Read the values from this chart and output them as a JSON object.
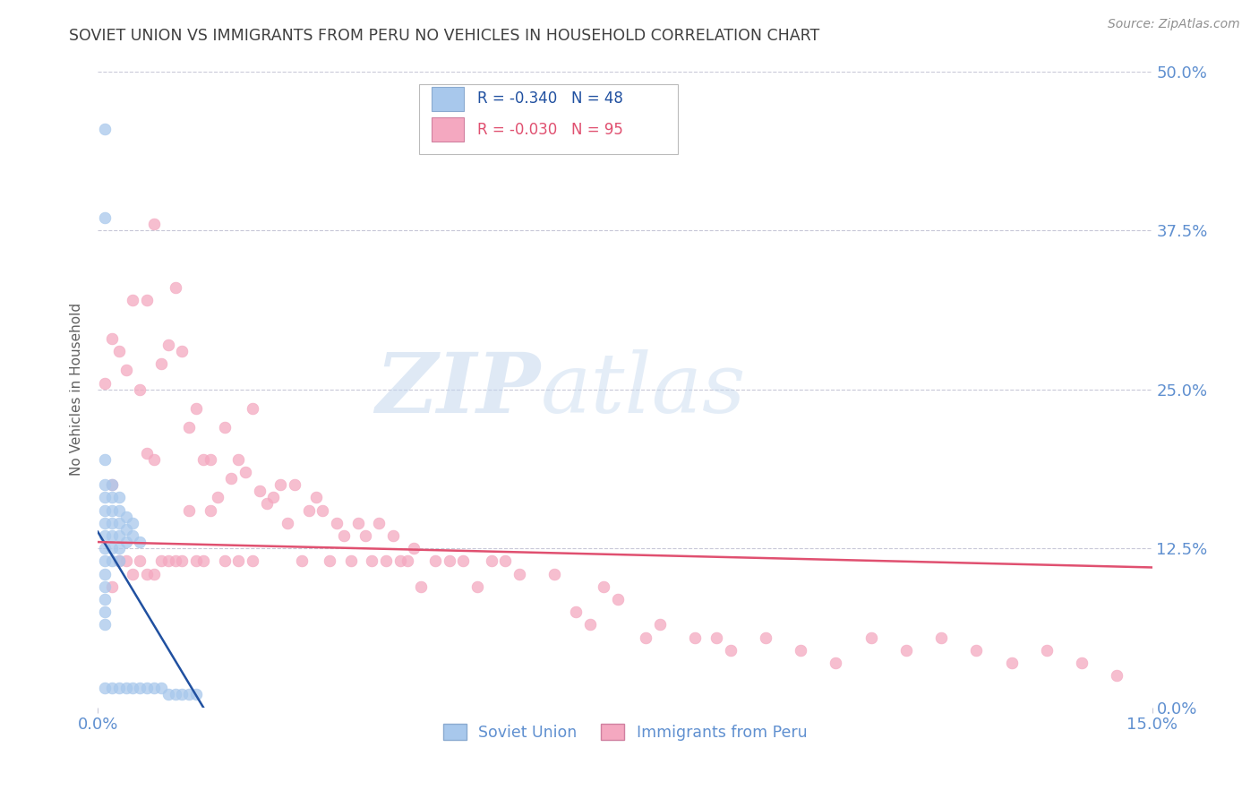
{
  "title": "SOVIET UNION VS IMMIGRANTS FROM PERU NO VEHICLES IN HOUSEHOLD CORRELATION CHART",
  "source": "Source: ZipAtlas.com",
  "ylabel": "No Vehicles in Household",
  "xlim": [
    0.0,
    0.15
  ],
  "ylim": [
    0.0,
    0.5
  ],
  "yticks": [
    0.0,
    0.125,
    0.25,
    0.375,
    0.5
  ],
  "ytick_labels_right": [
    "0.0%",
    "12.5%",
    "25.0%",
    "37.5%",
    "50.0%"
  ],
  "xtick_vals": [
    0.0,
    0.15
  ],
  "xtick_labels": [
    "0.0%",
    "15.0%"
  ],
  "r1": "-0.340",
  "n1": "48",
  "r2": "-0.030",
  "n2": "95",
  "legend1_label": "Soviet Union",
  "legend2_label": "Immigrants from Peru",
  "color_blue": "#A8C8EC",
  "color_pink": "#F4A8C0",
  "color_blue_line": "#2050A0",
  "color_pink_line": "#E05070",
  "color_axis": "#6090D0",
  "color_title": "#404040",
  "color_source": "#909090",
  "background": "#FFFFFF",
  "grid_color": "#C8C8D8",
  "watermark_color": "#D8E8F5",
  "soviet_x": [
    0.001,
    0.001,
    0.001,
    0.001,
    0.001,
    0.001,
    0.001,
    0.001,
    0.001,
    0.001,
    0.001,
    0.001,
    0.001,
    0.001,
    0.001,
    0.001,
    0.002,
    0.002,
    0.002,
    0.002,
    0.002,
    0.002,
    0.002,
    0.002,
    0.003,
    0.003,
    0.003,
    0.003,
    0.003,
    0.003,
    0.003,
    0.004,
    0.004,
    0.004,
    0.004,
    0.005,
    0.005,
    0.005,
    0.006,
    0.006,
    0.007,
    0.008,
    0.009,
    0.01,
    0.011,
    0.012,
    0.013,
    0.014
  ],
  "soviet_y": [
    0.455,
    0.385,
    0.195,
    0.175,
    0.165,
    0.155,
    0.145,
    0.135,
    0.125,
    0.115,
    0.105,
    0.095,
    0.085,
    0.075,
    0.065,
    0.015,
    0.175,
    0.165,
    0.155,
    0.145,
    0.135,
    0.125,
    0.115,
    0.015,
    0.165,
    0.155,
    0.145,
    0.135,
    0.125,
    0.115,
    0.015,
    0.15,
    0.14,
    0.13,
    0.015,
    0.145,
    0.135,
    0.015,
    0.13,
    0.015,
    0.015,
    0.015,
    0.015,
    0.01,
    0.01,
    0.01,
    0.01,
    0.01
  ],
  "peru_x": [
    0.001,
    0.002,
    0.002,
    0.002,
    0.003,
    0.003,
    0.004,
    0.004,
    0.005,
    0.005,
    0.006,
    0.006,
    0.007,
    0.007,
    0.007,
    0.008,
    0.008,
    0.008,
    0.009,
    0.009,
    0.01,
    0.01,
    0.011,
    0.011,
    0.012,
    0.012,
    0.013,
    0.013,
    0.014,
    0.014,
    0.015,
    0.015,
    0.016,
    0.016,
    0.017,
    0.018,
    0.018,
    0.019,
    0.02,
    0.02,
    0.021,
    0.022,
    0.022,
    0.023,
    0.024,
    0.025,
    0.026,
    0.027,
    0.028,
    0.029,
    0.03,
    0.031,
    0.032,
    0.033,
    0.034,
    0.035,
    0.036,
    0.037,
    0.038,
    0.039,
    0.04,
    0.041,
    0.042,
    0.043,
    0.044,
    0.045,
    0.046,
    0.048,
    0.05,
    0.052,
    0.054,
    0.056,
    0.058,
    0.06,
    0.065,
    0.068,
    0.07,
    0.072,
    0.074,
    0.078,
    0.08,
    0.085,
    0.088,
    0.09,
    0.095,
    0.1,
    0.105,
    0.11,
    0.115,
    0.12,
    0.125,
    0.13,
    0.135,
    0.14,
    0.145
  ],
  "peru_y": [
    0.255,
    0.29,
    0.175,
    0.095,
    0.28,
    0.115,
    0.265,
    0.115,
    0.32,
    0.105,
    0.25,
    0.115,
    0.32,
    0.2,
    0.105,
    0.38,
    0.195,
    0.105,
    0.27,
    0.115,
    0.285,
    0.115,
    0.33,
    0.115,
    0.28,
    0.115,
    0.22,
    0.155,
    0.235,
    0.115,
    0.195,
    0.115,
    0.195,
    0.155,
    0.165,
    0.22,
    0.115,
    0.18,
    0.195,
    0.115,
    0.185,
    0.235,
    0.115,
    0.17,
    0.16,
    0.165,
    0.175,
    0.145,
    0.175,
    0.115,
    0.155,
    0.165,
    0.155,
    0.115,
    0.145,
    0.135,
    0.115,
    0.145,
    0.135,
    0.115,
    0.145,
    0.115,
    0.135,
    0.115,
    0.115,
    0.125,
    0.095,
    0.115,
    0.115,
    0.115,
    0.095,
    0.115,
    0.115,
    0.105,
    0.105,
    0.075,
    0.065,
    0.095,
    0.085,
    0.055,
    0.065,
    0.055,
    0.055,
    0.045,
    0.055,
    0.045,
    0.035,
    0.055,
    0.045,
    0.055,
    0.045,
    0.035,
    0.045,
    0.035,
    0.025
  ],
  "soviet_trend_x": [
    0.0,
    0.015
  ],
  "soviet_trend_y": [
    0.138,
    0.0
  ],
  "peru_trend_x": [
    0.0,
    0.15
  ],
  "peru_trend_y": [
    0.13,
    0.11
  ]
}
